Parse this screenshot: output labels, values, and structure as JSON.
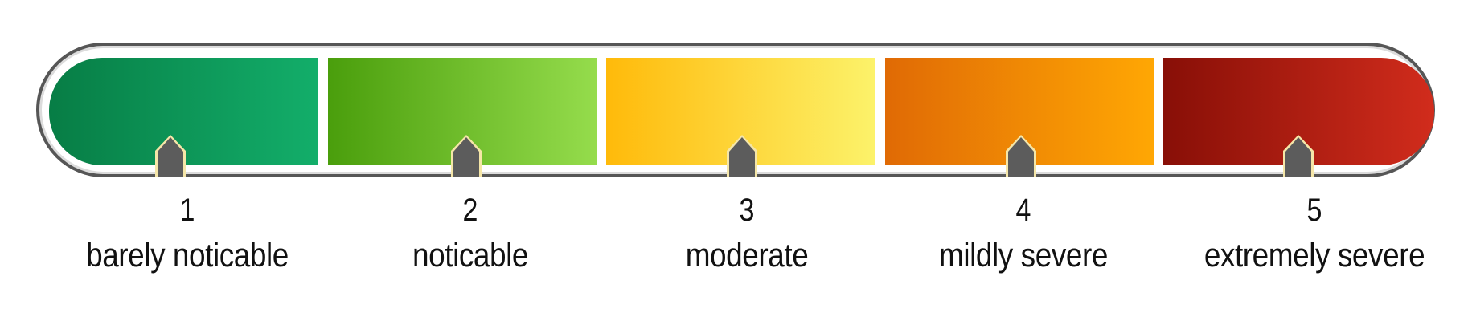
{
  "scale": {
    "levels": [
      {
        "number": "1",
        "label": "barely noticable",
        "gradient": [
          "#077d45",
          "#13ae6a"
        ],
        "icon": "pointer-arrow-icon"
      },
      {
        "number": "2",
        "label": "noticable",
        "gradient": [
          "#4a9e0c",
          "#95dc4c"
        ],
        "icon": "pointer-arrow-icon"
      },
      {
        "number": "3",
        "label": "moderate",
        "gradient": [
          "#ffba0a",
          "#fcf26a"
        ],
        "icon": "pointer-arrow-icon"
      },
      {
        "number": "4",
        "label": "mildly severe",
        "gradient": [
          "#e06a05",
          "#ffa704"
        ],
        "icon": "pointer-arrow-icon"
      },
      {
        "number": "5",
        "label": "extremely severe",
        "gradient": [
          "#880f07",
          "#d12c1c"
        ],
        "icon": "pointer-arrow-icon"
      }
    ],
    "frame_color": "#565656",
    "pointer_color": "#5c5c5c"
  }
}
